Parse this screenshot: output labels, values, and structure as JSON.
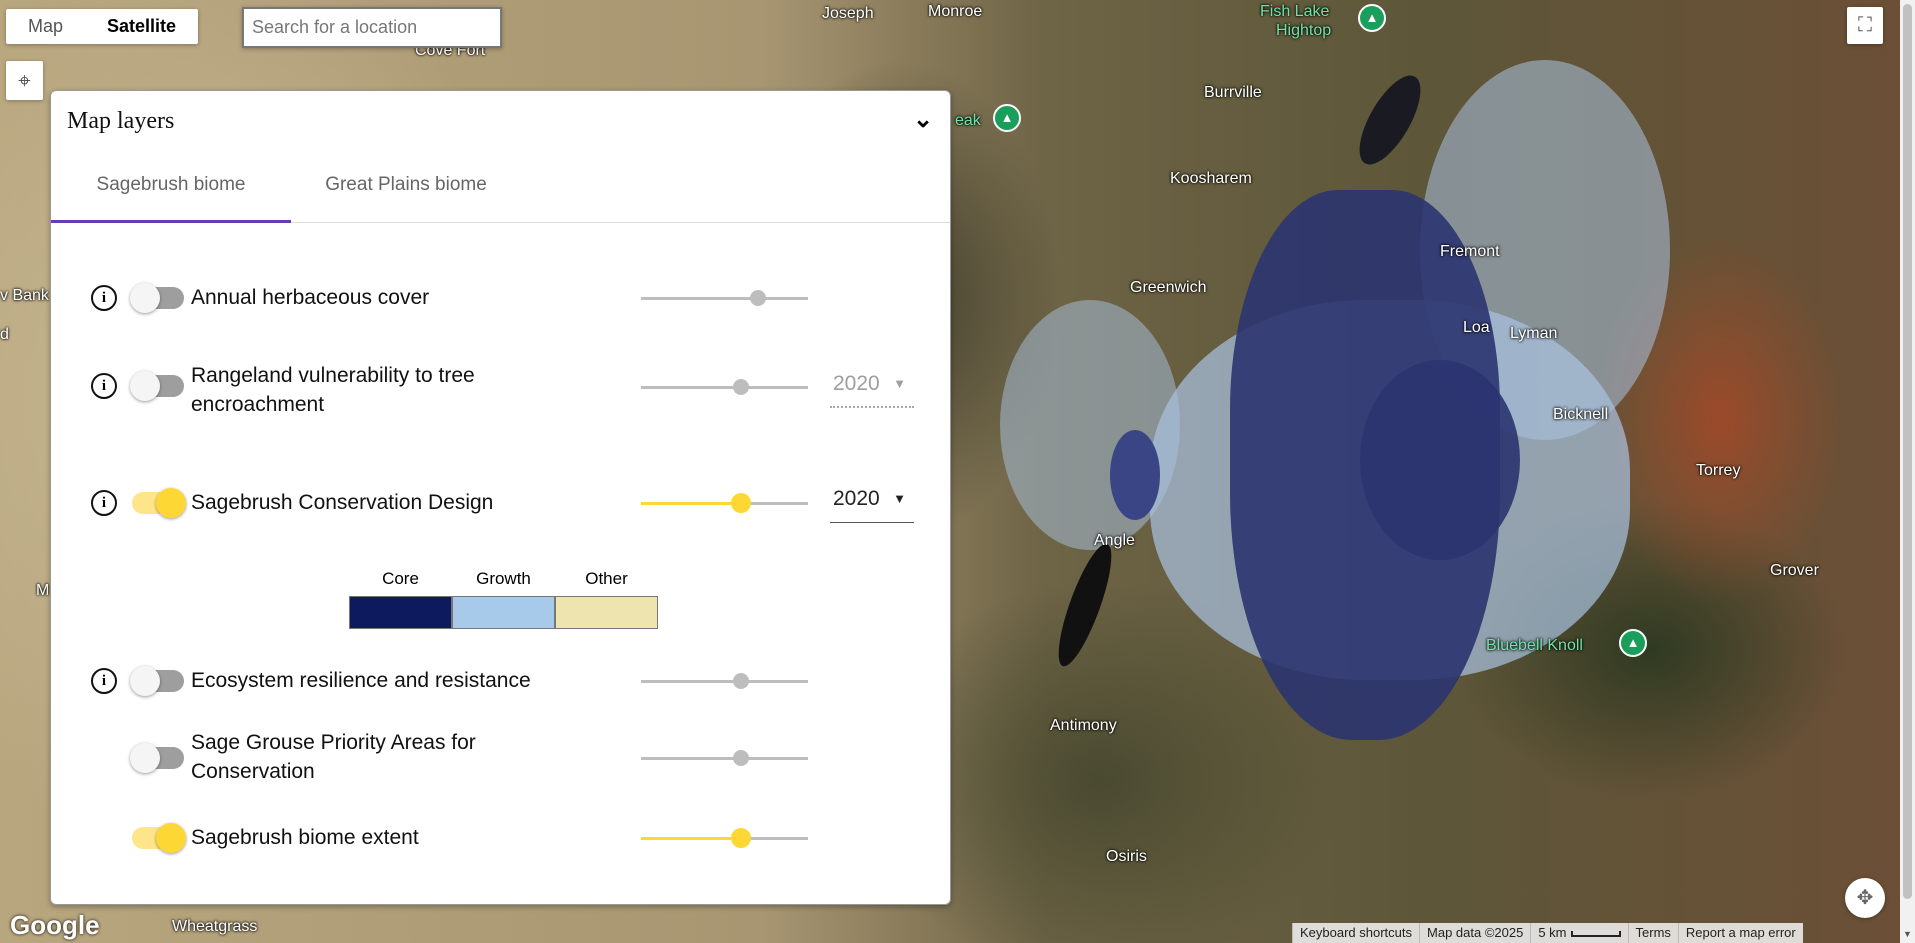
{
  "map_type": {
    "options": [
      "Map",
      "Satellite"
    ],
    "selected": "Satellite"
  },
  "search": {
    "placeholder": "Search for a location",
    "value": ""
  },
  "map_labels": [
    "Joseph",
    "Monroe",
    "Fish Lake",
    "Hightop",
    "Cove Fort",
    "eak",
    "Burrville",
    "Koosharem",
    "Fremont",
    "Greenwich",
    "Loa",
    "Lyman",
    "Bicknell",
    "Torrey",
    "Angle",
    "Grover",
    "Bluebell Knoll",
    "Antimony",
    "Osiris",
    "Wheatgrass",
    "v Bank",
    "d",
    "M"
  ],
  "panel": {
    "title": "Map layers",
    "tabs": [
      {
        "label": "Sagebrush biome",
        "active": true
      },
      {
        "label": "Great Plains biome",
        "active": false
      }
    ],
    "layers": [
      {
        "label": "Annual herbaceous cover",
        "enabled": false,
        "info": true,
        "opacity": 0.7
      },
      {
        "label": "Rangeland vulnerability to tree encroachment",
        "enabled": false,
        "info": true,
        "opacity": 0.6,
        "year": "2020"
      },
      {
        "label": "Sagebrush Conservation Design",
        "enabled": true,
        "info": true,
        "opacity": 0.6,
        "year": "2020"
      },
      {
        "label": "Ecosystem resilience and resistance",
        "enabled": false,
        "info": true,
        "opacity": 0.6
      },
      {
        "label": "Sage Grouse Priority Areas for Conservation",
        "enabled": false,
        "info": false,
        "opacity": 0.6
      },
      {
        "label": "Sagebrush biome extent",
        "enabled": true,
        "info": false,
        "opacity": 0.6
      }
    ],
    "legend": [
      {
        "label": "Core",
        "color": "#0d1b5e"
      },
      {
        "label": "Growth",
        "color": "#a7caeb"
      },
      {
        "label": "Other",
        "color": "#ede4b0"
      }
    ]
  },
  "attribution": {
    "shortcuts": "Keyboard shortcuts",
    "map_data": "Map data ©2025",
    "scale": "5 km",
    "terms": "Terms",
    "report": "Report a map error"
  },
  "logo": "Google",
  "colors": {
    "accent": "#673ab7",
    "toggle_on": "#fdd835",
    "core": "#0d1b5e",
    "growth": "#a7caeb"
  }
}
